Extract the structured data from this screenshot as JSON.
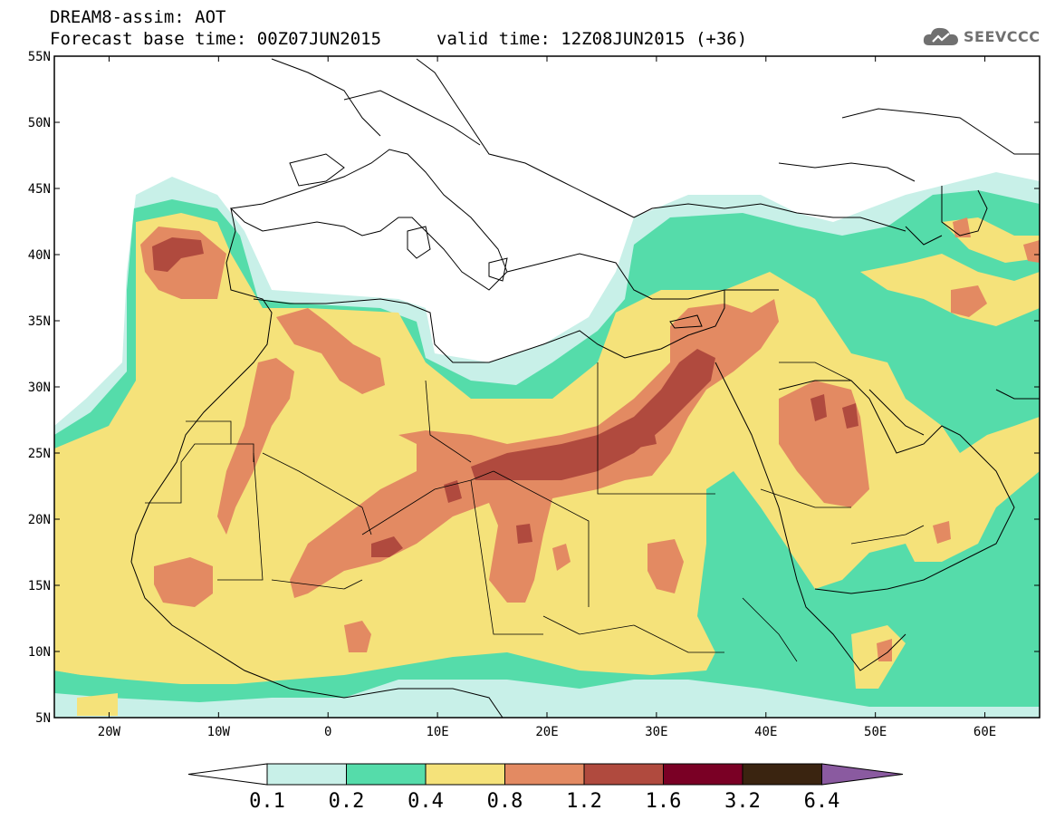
{
  "header": {
    "line1": "DREAM8-assim: AOT",
    "base_time": "Forecast base time: 00Z07JUN2015",
    "valid_time": "valid time: 12Z08JUN2015 (+36)"
  },
  "logo": {
    "text": "SEEVCCC",
    "icon": "cloud-icon"
  },
  "map": {
    "lon_range": [
      -25,
      65
    ],
    "lat_range": [
      5,
      55
    ],
    "lat_ticks": [
      "5N",
      "10N",
      "15N",
      "20N",
      "25N",
      "30N",
      "35N",
      "40N",
      "45N",
      "50N",
      "55N"
    ],
    "lon_ticks": [
      "20W",
      "10W",
      "0",
      "10E",
      "20E",
      "30E",
      "40E",
      "50E",
      "60E"
    ]
  },
  "colorbar": {
    "labels": [
      "0.1",
      "0.2",
      "0.4",
      "0.8",
      "1.2",
      "1.6",
      "3.2",
      "6.4"
    ],
    "colors": [
      "#ffffff",
      "#c8f0e8",
      "#55dcaa",
      "#f5e27a",
      "#e38a62",
      "#b04a3e",
      "#7a0025",
      "#3a2410",
      "#8a5aa0"
    ]
  },
  "layer_colors": {
    "c01": "#c8f0e8",
    "c02": "#55dcaa",
    "c04": "#f5e27a",
    "c08": "#e38a62",
    "c12": "#b04a3e"
  }
}
